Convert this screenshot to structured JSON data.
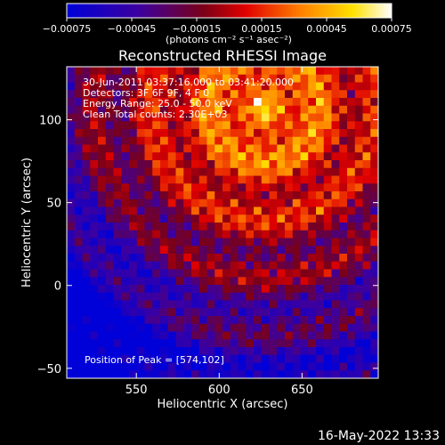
{
  "chart_data": {
    "type": "heatmap",
    "title": "Reconstructed RHESSI Image",
    "xlabel": "Heliocentric X (arcsec)",
    "ylabel": "Heliocentric Y (arcsec)",
    "xlim": [
      508,
      696
    ],
    "ylim": [
      -56,
      132
    ],
    "x_ticks": [
      550,
      600,
      650
    ],
    "y_ticks": [
      -50,
      0,
      50,
      100
    ],
    "x_tick_labels": [
      "550",
      "600",
      "650"
    ],
    "y_tick_labels": [
      "−50",
      "0",
      "50",
      "100"
    ],
    "colorbar": {
      "range": [
        -0.00075,
        0.00075
      ],
      "ticks": [
        -0.00075,
        -0.00045,
        -0.00015,
        0.00015,
        0.00045,
        0.00075
      ],
      "tick_labels": [
        "−0.00075",
        "−0.00045",
        "−0.00015",
        "0.00015",
        "0.00045",
        "0.00075"
      ],
      "unit_label": "(photons cm⁻² s⁻¹ asec⁻²)",
      "colormap": [
        "#0000d8",
        "#3c00a0",
        "#7a0018",
        "#e00000",
        "#ff8000",
        "#ffe000",
        "#ffffff"
      ]
    },
    "annotations": [
      "30-Jun-2011 03:37:16.000 to 03:41:20.000",
      "Detectors: 3F 6F 9F, 4 F 0",
      "Energy Range: 25.0 - 50.0 keV",
      "Clean    Total counts: 2.30E+03"
    ],
    "peak_label": "Position of Peak = [574,102]",
    "peak": [
      574,
      102
    ],
    "grid": false
  },
  "timestamp": "16-May-2022 13:33"
}
